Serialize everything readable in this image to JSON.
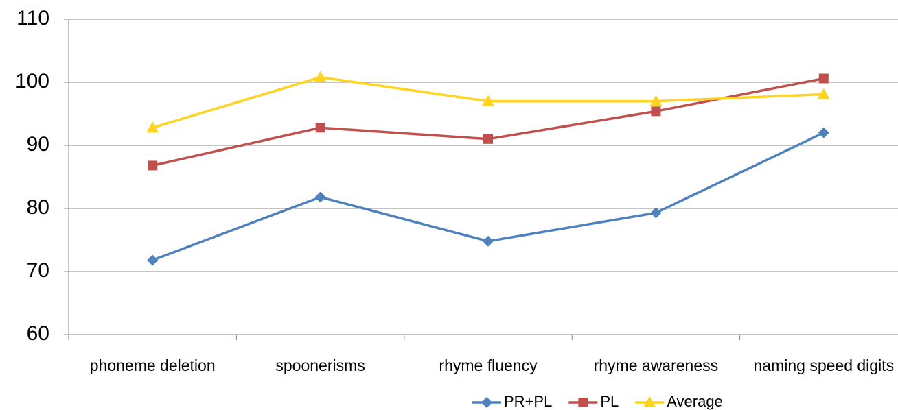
{
  "chart_data": {
    "type": "line",
    "categories": [
      "phoneme deletion",
      "spoonerisms",
      "rhyme fluency",
      "rhyme awareness",
      "naming speed digits"
    ],
    "series": [
      {
        "name": "PR+PL",
        "color": "#4f81bd",
        "marker": "diamond",
        "values": [
          71.8,
          81.8,
          74.8,
          79.3,
          92.0
        ]
      },
      {
        "name": "PL",
        "color": "#c0504d",
        "marker": "square",
        "values": [
          86.8,
          92.8,
          91.0,
          95.4,
          100.6
        ]
      },
      {
        "name": "Average",
        "color": "#ffd320",
        "marker": "triangle",
        "values": [
          92.8,
          100.8,
          97.0,
          97.0,
          98.1
        ]
      }
    ],
    "ylim": [
      60,
      110
    ],
    "yticks": [
      60,
      70,
      80,
      90,
      100,
      110
    ],
    "grid": true,
    "legend": "bottom"
  }
}
